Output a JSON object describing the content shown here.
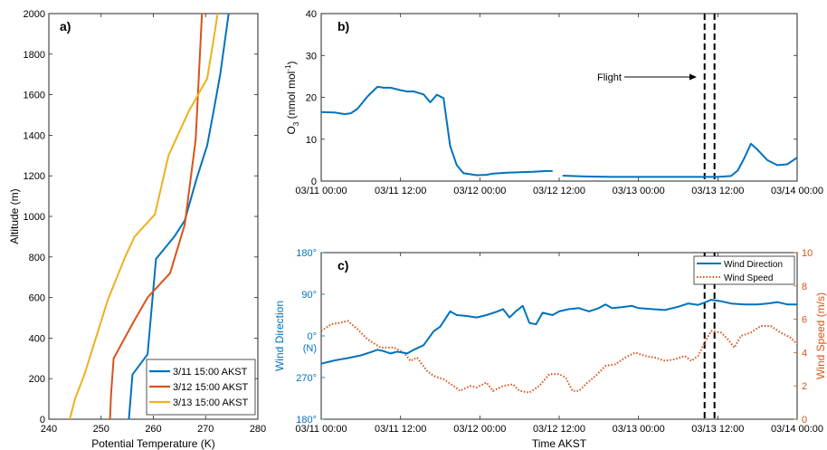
{
  "chart_data": [
    {
      "panel": "a)",
      "type": "line",
      "xlabel": "Potential Temperature (K)",
      "ylabel": "Altitude (m)",
      "xlim": [
        240,
        280
      ],
      "ylim": [
        0,
        2000
      ],
      "x_ticks": [
        240,
        250,
        260,
        270,
        280
      ],
      "y_ticks": [
        0,
        200,
        400,
        600,
        800,
        1000,
        1200,
        1400,
        1600,
        1800,
        2000
      ],
      "legend_position": "bottom-right",
      "series": [
        {
          "name": "3/11 15:00 AKST",
          "color": "#0072BD",
          "points": [
            [
              255.3,
              0
            ],
            [
              255.6,
              90
            ],
            [
              256,
              220
            ],
            [
              258.9,
              320
            ],
            [
              260.5,
              790
            ],
            [
              264,
              900
            ],
            [
              266,
              980
            ],
            [
              268.2,
              1180
            ],
            [
              270.3,
              1350
            ],
            [
              271.4,
              1500
            ],
            [
              272.8,
              1700
            ],
            [
              274.4,
              2000
            ]
          ]
        },
        {
          "name": "3/12 15:00 AKST",
          "color": "#D95319",
          "points": [
            [
              251.7,
              0
            ],
            [
              251.9,
              120
            ],
            [
              252.4,
              300
            ],
            [
              256.2,
              480
            ],
            [
              258.9,
              600
            ],
            [
              263.2,
              720
            ],
            [
              266,
              960
            ],
            [
              268.1,
              1380
            ],
            [
              269.3,
              2000
            ]
          ]
        },
        {
          "name": "3/13 15:00 AKST",
          "color": "#EDB120",
          "points": [
            [
              244,
              0
            ],
            [
              245,
              100
            ],
            [
              246.8,
              220
            ],
            [
              251.3,
              590
            ],
            [
              254.6,
              800
            ],
            [
              256.4,
              900
            ],
            [
              260.3,
              1010
            ],
            [
              262.9,
              1300
            ],
            [
              266.8,
              1520
            ],
            [
              270.3,
              1680
            ],
            [
              271.4,
              1850
            ],
            [
              272.3,
              2000
            ]
          ]
        }
      ]
    },
    {
      "panel": "b)",
      "type": "line",
      "ylabel_base": "O",
      "ylabel_sub": "3",
      "ylabel_main": " (nmol mol",
      "ylabel_sup": "-1",
      "ylabel_end": ")",
      "xlim": [
        "03/11 00:00",
        "03/14 00:00"
      ],
      "ylim": [
        0,
        40
      ],
      "y_ticks": [
        0,
        10,
        20,
        30,
        40
      ],
      "x_ticks": [
        "03/11 00:00",
        "03/11 12:00",
        "03/12 00:00",
        "03/12 12:00",
        "03/13 00:00",
        "03/13 12:00",
        "03/14 00:00"
      ],
      "annotation": "Flight",
      "flight_window": [
        "03/13 10:00",
        "03/13 11:30"
      ],
      "series": [
        {
          "name": "O3",
          "color": "#0072BD",
          "segments": [
            [
              [
                "03/11 00:00",
                16.5
              ],
              [
                "03/11 02:00",
                16.4
              ],
              [
                "03/11 03:30",
                16
              ],
              [
                "03/11 04:30",
                16.2
              ],
              [
                "03/11 05:30",
                17.3
              ],
              [
                "03/11 07:00",
                20.2
              ],
              [
                "03/11 08:30",
                22.5
              ],
              [
                "03/11 09:30",
                22.3
              ],
              [
                "03/11 10:30",
                22.3
              ],
              [
                "03/11 12:00",
                21.7
              ],
              [
                "03/11 13:00",
                21.4
              ],
              [
                "03/11 14:00",
                21.4
              ],
              [
                "03/11 15:30",
                20.7
              ],
              [
                "03/11 16:30",
                18.8
              ],
              [
                "03/11 17:30",
                20.6
              ],
              [
                "03/11 18:30",
                19.8
              ],
              [
                "03/11 19:30",
                8.4
              ],
              [
                "03/11 20:30",
                3.8
              ],
              [
                "03/11 21:30",
                1.9
              ],
              [
                "03/11 23:30",
                1.4
              ],
              [
                "03/12 01:00",
                1.5
              ],
              [
                "03/12 02:00",
                1.8
              ],
              [
                "03/12 04:00",
                2.0
              ],
              [
                "03/12 06:00",
                2.1
              ],
              [
                "03/12 08:00",
                2.2
              ],
              [
                "03/12 10:00",
                2.4
              ],
              [
                "03/12 11:00",
                2.4
              ]
            ],
            [
              [
                "03/12 12:30",
                1.3
              ],
              [
                "03/12 16:00",
                1.1
              ],
              [
                "03/12 20:00",
                1.0
              ],
              [
                "03/13 00:00",
                1.0
              ],
              [
                "03/13 04:00",
                1.0
              ],
              [
                "03/13 08:00",
                1.0
              ],
              [
                "03/13 12:00",
                1.0
              ],
              [
                "03/13 14:00",
                1.2
              ],
              [
                "03/13 15:00",
                2.5
              ],
              [
                "03/13 16:00",
                5.5
              ],
              [
                "03/13 17:00",
                8.9
              ],
              [
                "03/13 18:00",
                7.5
              ],
              [
                "03/13 19:30",
                5.0
              ],
              [
                "03/13 21:00",
                3.8
              ],
              [
                "03/13 22:30",
                4.0
              ],
              [
                "03/14 00:00",
                5.6
              ]
            ]
          ]
        }
      ]
    },
    {
      "panel": "c)",
      "type": "line",
      "xlabel": "Time AKST",
      "ylabel": "Wind Direction",
      "y2label": "Wind Speed (m/s)",
      "xlim": [
        "03/11 00:00",
        "03/14 00:00"
      ],
      "x_ticks": [
        "03/11 00:00",
        "03/11 12:00",
        "03/12 00:00",
        "03/12 12:00",
        "03/13 00:00",
        "03/13 12:00",
        "03/14 00:00"
      ],
      "y_ticks": [
        "180°",
        "90°",
        "0°",
        "(N)",
        "270°",
        "180°"
      ],
      "y2lim": [
        0,
        10
      ],
      "y2_ticks": [
        0,
        2,
        4,
        6,
        8,
        10
      ],
      "flight_window": [
        "03/13 10:00",
        "03/13 11:30"
      ],
      "legend_position": "top-right",
      "series": [
        {
          "name": "Wind Direction",
          "color": "#0072BD",
          "style": "solid",
          "axis": "left",
          "points": [
            [
              "03/11 00:00",
              300
            ],
            [
              "03/11 02:00",
              307
            ],
            [
              "03/11 04:00",
              312
            ],
            [
              "03/11 06:00",
              318
            ],
            [
              "03/11 07:30",
              325
            ],
            [
              "03/11 08:30",
              330
            ],
            [
              "03/11 09:30",
              327
            ],
            [
              "03/11 10:30",
              322
            ],
            [
              "03/11 11:30",
              326
            ],
            [
              "03/11 13:00",
              322
            ],
            [
              "03/11 14:00",
              330
            ],
            [
              "03/11 15:30",
              340
            ],
            [
              "03/11 17:00",
              370
            ],
            [
              "03/11 18:00",
              380
            ],
            [
              "03/11 19:30",
              413
            ],
            [
              "03/11 20:30",
              405
            ],
            [
              "03/11 22:00",
              403
            ],
            [
              "03/11 23:30",
              400
            ],
            [
              "03/12 01:00",
              405
            ],
            [
              "03/12 02:30",
              412
            ],
            [
              "03/12 03:30",
              418
            ],
            [
              "03/12 04:30",
              400
            ],
            [
              "03/12 05:30",
              414
            ],
            [
              "03/12 06:30",
              425
            ],
            [
              "03/12 07:30",
              388
            ],
            [
              "03/12 08:30",
              385
            ],
            [
              "03/12 09:30",
              410
            ],
            [
              "03/12 11:00",
              405
            ],
            [
              "03/12 12:00",
              413
            ],
            [
              "03/12 13:30",
              418
            ],
            [
              "03/12 15:00",
              420
            ],
            [
              "03/12 16:30",
              413
            ],
            [
              "03/12 18:00",
              420
            ],
            [
              "03/12 19:00",
              428
            ],
            [
              "03/12 20:00",
              420
            ],
            [
              "03/12 21:30",
              422
            ],
            [
              "03/12 23:00",
              425
            ],
            [
              "03/13 00:00",
              420
            ],
            [
              "03/13 02:00",
              418
            ],
            [
              "03/13 04:00",
              416
            ],
            [
              "03/13 06:00",
              423
            ],
            [
              "03/13 07:30",
              430
            ],
            [
              "03/13 09:00",
              427
            ],
            [
              "03/13 10:00",
              432
            ],
            [
              "03/13 11:00",
              438
            ],
            [
              "03/13 12:30",
              435
            ],
            [
              "03/13 14:00",
              430
            ],
            [
              "03/13 16:00",
              428
            ],
            [
              "03/13 18:00",
              428
            ],
            [
              "03/13 19:30",
              430
            ],
            [
              "03/13 21:00",
              433
            ],
            [
              "03/13 22:30",
              428
            ],
            [
              "03/14 00:00",
              428
            ]
          ]
        },
        {
          "name": "Wind Speed",
          "color": "#D95319",
          "style": "dotted",
          "axis": "right",
          "points": [
            [
              "03/11 00:00",
              5.3
            ],
            [
              "03/11 01:30",
              5.7
            ],
            [
              "03/11 03:00",
              5.8
            ],
            [
              "03/11 04:00",
              5.9
            ],
            [
              "03/11 05:30",
              5.4
            ],
            [
              "03/11 07:00",
              4.8
            ],
            [
              "03/11 09:00",
              4.3
            ],
            [
              "03/11 11:00",
              4.3
            ],
            [
              "03/11 12:30",
              4.0
            ],
            [
              "03/11 13:30",
              3.5
            ],
            [
              "03/11 14:30",
              3.7
            ],
            [
              "03/11 16:00",
              2.9
            ],
            [
              "03/11 17:00",
              2.6
            ],
            [
              "03/11 18:30",
              2.4
            ],
            [
              "03/11 20:00",
              2.0
            ],
            [
              "03/11 21:00",
              1.7
            ],
            [
              "03/11 22:30",
              2.0
            ],
            [
              "03/11 23:30",
              1.9
            ],
            [
              "03/12 01:00",
              2.2
            ],
            [
              "03/12 02:00",
              1.7
            ],
            [
              "03/12 03:30",
              2.0
            ],
            [
              "03/12 05:00",
              2.1
            ],
            [
              "03/12 06:00",
              1.7
            ],
            [
              "03/12 07:30",
              1.6
            ],
            [
              "03/12 09:00",
              2.0
            ],
            [
              "03/12 10:30",
              2.7
            ],
            [
              "03/12 12:00",
              2.7
            ],
            [
              "03/12 13:00",
              2.5
            ],
            [
              "03/12 14:00",
              1.7
            ],
            [
              "03/12 15:00",
              1.7
            ],
            [
              "03/12 16:00",
              2.1
            ],
            [
              "03/12 17:30",
              2.6
            ],
            [
              "03/12 19:00",
              3.2
            ],
            [
              "03/12 20:30",
              3.3
            ],
            [
              "03/12 22:00",
              3.7
            ],
            [
              "03/12 23:30",
              4.0
            ],
            [
              "03/13 01:00",
              3.8
            ],
            [
              "03/13 02:30",
              3.7
            ],
            [
              "03/13 04:00",
              3.5
            ],
            [
              "03/13 05:30",
              3.6
            ],
            [
              "03/13 07:00",
              3.8
            ],
            [
              "03/13 08:00",
              3.5
            ],
            [
              "03/13 09:00",
              3.8
            ],
            [
              "03/13 10:00",
              4.6
            ],
            [
              "03/13 11:00",
              5.3
            ],
            [
              "03/13 12:30",
              5.2
            ],
            [
              "03/13 13:30",
              4.8
            ],
            [
              "03/13 14:30",
              4.3
            ],
            [
              "03/13 15:30",
              5.0
            ],
            [
              "03/13 17:00",
              5.2
            ],
            [
              "03/13 18:30",
              5.6
            ],
            [
              "03/13 20:00",
              5.6
            ],
            [
              "03/13 21:30",
              5.2
            ],
            [
              "03/13 23:00",
              4.9
            ],
            [
              "03/14 00:00",
              4.5
            ]
          ]
        }
      ]
    }
  ]
}
